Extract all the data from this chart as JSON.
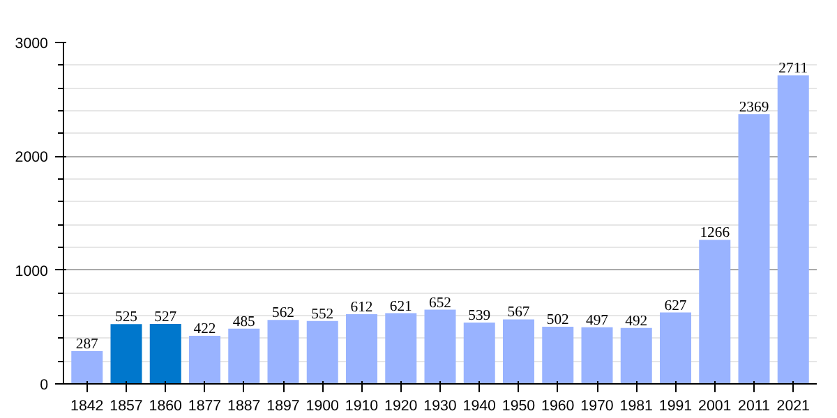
{
  "chart_data": {
    "type": "bar",
    "categories": [
      "1842",
      "1857",
      "1860",
      "1877",
      "1887",
      "1897",
      "1900",
      "1910",
      "1920",
      "1930",
      "1940",
      "1950",
      "1960",
      "1970",
      "1981",
      "1991",
      "2001",
      "2011",
      "2021"
    ],
    "values": [
      287,
      525,
      527,
      422,
      485,
      562,
      552,
      612,
      621,
      652,
      539,
      567,
      502,
      497,
      492,
      627,
      1266,
      2369,
      2711
    ],
    "colors": [
      "#99b3ff",
      "#0077cc",
      "#0077cc",
      "#99b3ff",
      "#99b3ff",
      "#99b3ff",
      "#99b3ff",
      "#99b3ff",
      "#99b3ff",
      "#99b3ff",
      "#99b3ff",
      "#99b3ff",
      "#99b3ff",
      "#99b3ff",
      "#99b3ff",
      "#99b3ff",
      "#99b3ff",
      "#99b3ff",
      "#99b3ff"
    ],
    "ylim": [
      0,
      3000
    ],
    "yticks": [
      0,
      1000,
      2000,
      3000
    ],
    "grid": "y",
    "data_labels": true
  }
}
